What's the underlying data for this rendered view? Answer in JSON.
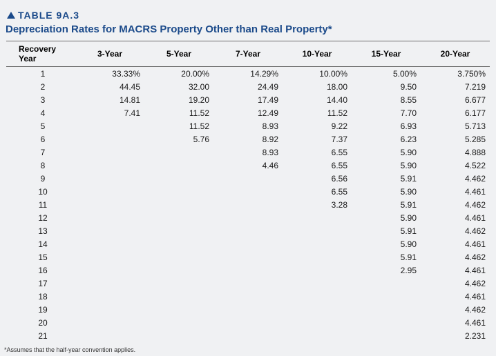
{
  "label": "TABLE 9A.3",
  "title": "Depreciation Rates for MACRS Property Other than Real Property*",
  "footnote": "*Assumes that the half-year convention applies.",
  "columns": [
    "Recovery Year",
    "3-Year",
    "5-Year",
    "7-Year",
    "10-Year",
    "15-Year",
    "20-Year"
  ],
  "rows": [
    [
      "1",
      "33.33%",
      "20.00%",
      "14.29%",
      "10.00%",
      "5.00%",
      "3.750%"
    ],
    [
      "2",
      "44.45",
      "32.00",
      "24.49",
      "18.00",
      "9.50",
      "7.219"
    ],
    [
      "3",
      "14.81",
      "19.20",
      "17.49",
      "14.40",
      "8.55",
      "6.677"
    ],
    [
      "4",
      "7.41",
      "11.52",
      "12.49",
      "11.52",
      "7.70",
      "6.177"
    ],
    [
      "5",
      "",
      "11.52",
      "8.93",
      "9.22",
      "6.93",
      "5.713"
    ],
    [
      "6",
      "",
      "5.76",
      "8.92",
      "7.37",
      "6.23",
      "5.285"
    ],
    [
      "7",
      "",
      "",
      "8.93",
      "6.55",
      "5.90",
      "4.888"
    ],
    [
      "8",
      "",
      "",
      "4.46",
      "6.55",
      "5.90",
      "4.522"
    ],
    [
      "9",
      "",
      "",
      "",
      "6.56",
      "5.91",
      "4.462"
    ],
    [
      "10",
      "",
      "",
      "",
      "6.55",
      "5.90",
      "4.461"
    ],
    [
      "11",
      "",
      "",
      "",
      "3.28",
      "5.91",
      "4.462"
    ],
    [
      "12",
      "",
      "",
      "",
      "",
      "5.90",
      "4.461"
    ],
    [
      "13",
      "",
      "",
      "",
      "",
      "5.91",
      "4.462"
    ],
    [
      "14",
      "",
      "",
      "",
      "",
      "5.90",
      "4.461"
    ],
    [
      "15",
      "",
      "",
      "",
      "",
      "5.91",
      "4.462"
    ],
    [
      "16",
      "",
      "",
      "",
      "",
      "2.95",
      "4.461"
    ],
    [
      "17",
      "",
      "",
      "",
      "",
      "",
      "4.462"
    ],
    [
      "18",
      "",
      "",
      "",
      "",
      "",
      "4.461"
    ],
    [
      "19",
      "",
      "",
      "",
      "",
      "",
      "4.462"
    ],
    [
      "20",
      "",
      "",
      "",
      "",
      "",
      "4.461"
    ],
    [
      "21",
      "",
      "",
      "",
      "",
      "",
      "2.231"
    ]
  ],
  "styles": {
    "accent_color": "#1b4a8a",
    "background_color": "#f0f1f3",
    "border_color": "#6b6b6b",
    "header_fontsize": 12,
    "body_fontsize": 12,
    "title_fontsize": 15,
    "label_fontsize": 14,
    "footnote_fontsize": 9
  }
}
